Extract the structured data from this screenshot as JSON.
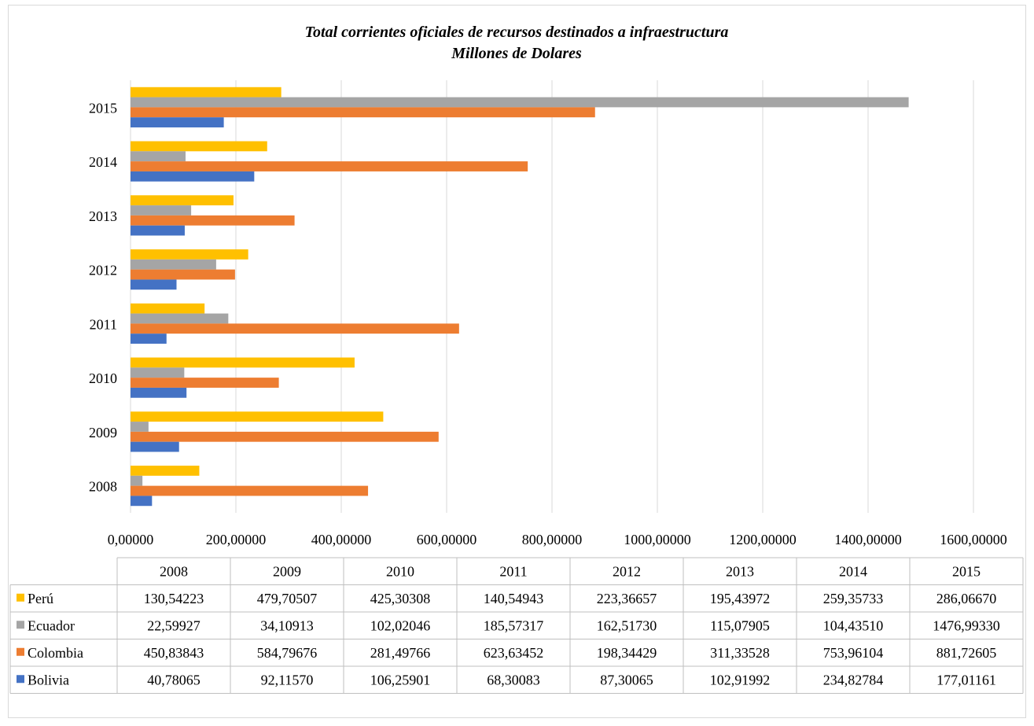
{
  "chart_data": {
    "type": "bar",
    "orientation": "horizontal",
    "title": "Total corrientes oficiales de recursos destinados a infraestructura",
    "subtitle": "Millones de Dolares",
    "categories": [
      "2008",
      "2009",
      "2010",
      "2011",
      "2012",
      "2013",
      "2014",
      "2015"
    ],
    "series": [
      {
        "name": "Perú",
        "color": "#FFC000",
        "values": [
          130.54223,
          479.70507,
          425.30308,
          140.54943,
          223.36657,
          195.43972,
          259.35733,
          286.0667
        ]
      },
      {
        "name": "Ecuador",
        "color": "#A5A5A5",
        "values": [
          22.59927,
          34.10913,
          102.02046,
          185.57317,
          162.5173,
          115.07905,
          104.4351,
          1476.9933
        ]
      },
      {
        "name": "Colombia",
        "color": "#ED7D31",
        "values": [
          450.83843,
          584.79676,
          281.49766,
          623.63452,
          198.34429,
          311.33528,
          753.96104,
          881.72605
        ]
      },
      {
        "name": "Bolivia",
        "color": "#4472C4",
        "values": [
          40.78065,
          92.1157,
          106.25901,
          68.30083,
          87.30065,
          102.91992,
          234.82784,
          177.01161
        ]
      }
    ],
    "xlim": [
      0,
      1600
    ],
    "x_ticks": [
      "0,00000",
      "200,00000",
      "400,00000",
      "600,00000",
      "800,00000",
      "1000,00000",
      "1200,00000",
      "1400,00000",
      "1600,00000"
    ],
    "grid": true,
    "data_table": {
      "header": [
        "2008",
        "2009",
        "2010",
        "2011",
        "2012",
        "2013",
        "2014",
        "2015"
      ],
      "rows": [
        {
          "name": "Perú",
          "color": "#FFC000",
          "cells": [
            "130,54223",
            "479,70507",
            "425,30308",
            "140,54943",
            "223,36657",
            "195,43972",
            "259,35733",
            "286,06670"
          ]
        },
        {
          "name": "Ecuador",
          "color": "#A5A5A5",
          "cells": [
            "22,59927",
            "34,10913",
            "102,02046",
            "185,57317",
            "162,51730",
            "115,07905",
            "104,43510",
            "1476,99330"
          ]
        },
        {
          "name": "Colombia",
          "color": "#ED7D31",
          "cells": [
            "450,83843",
            "584,79676",
            "281,49766",
            "623,63452",
            "198,34429",
            "311,33528",
            "753,96104",
            "881,72605"
          ]
        },
        {
          "name": "Bolivia",
          "color": "#4472C4",
          "cells": [
            "40,78065",
            "92,11570",
            "106,25901",
            "68,30083",
            "87,30065",
            "102,91992",
            "234,82784",
            "177,01161"
          ]
        }
      ]
    }
  }
}
